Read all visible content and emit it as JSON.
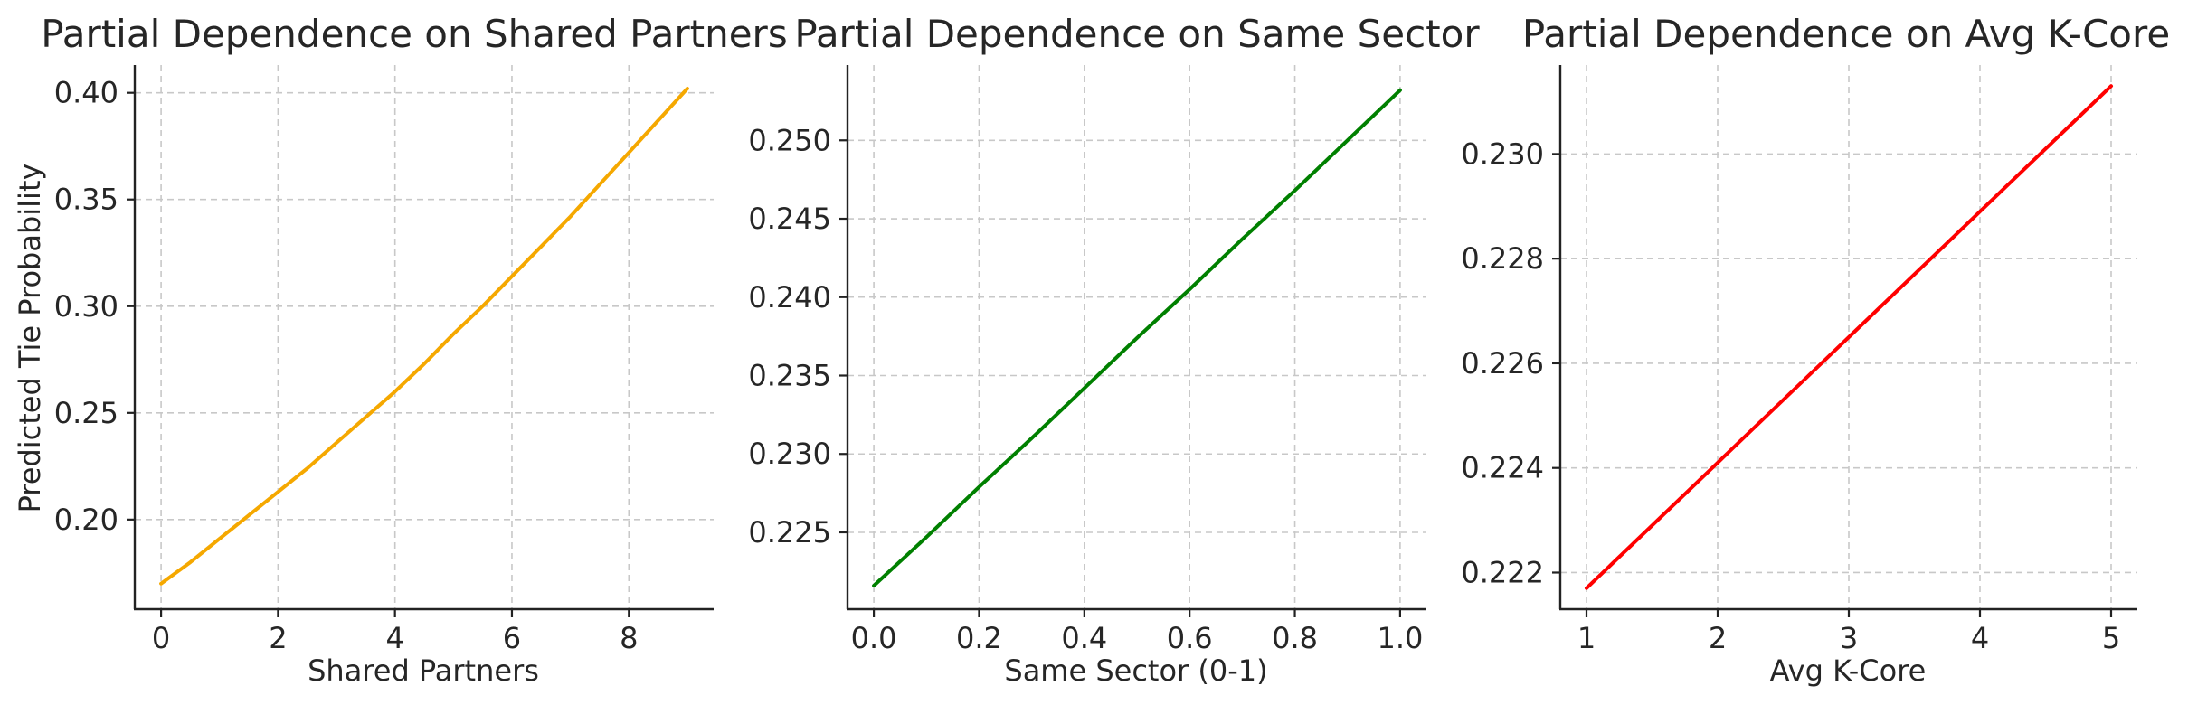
{
  "chart_data": [
    {
      "type": "line",
      "title": "Partial Dependence on Shared Partners",
      "xlabel": "Shared Partners",
      "ylabel": "Predicted Tie Probability",
      "xlim": [
        -0.45,
        9.45
      ],
      "ylim": [
        0.158,
        0.413
      ],
      "xticks": [
        0,
        2,
        4,
        6,
        8
      ],
      "xtick_labels": [
        "0",
        "2",
        "4",
        "6",
        "8"
      ],
      "yticks": [
        0.2,
        0.25,
        0.3,
        0.35,
        0.4
      ],
      "ytick_labels": [
        "0.20",
        "0.25",
        "0.30",
        "0.35",
        "0.40"
      ],
      "grid": true,
      "color": "#f5a800",
      "series": [
        {
          "x": [
            0,
            0.5,
            1,
            1.5,
            2,
            2.5,
            3,
            3.5,
            4,
            4.5,
            5,
            5.5,
            6,
            6.5,
            7,
            7.5,
            8,
            8.5,
            9
          ],
          "values": [
            0.17,
            0.18,
            0.191,
            0.202,
            0.213,
            0.224,
            0.236,
            0.248,
            0.26,
            0.273,
            0.287,
            0.3,
            0.314,
            0.328,
            0.342,
            0.357,
            0.372,
            0.387,
            0.402
          ]
        }
      ]
    },
    {
      "type": "line",
      "title": "Partial Dependence on Same Sector",
      "xlabel": "Same Sector (0-1)",
      "ylabel": "",
      "xlim": [
        -0.05,
        1.05
      ],
      "ylim": [
        0.2201,
        0.2548
      ],
      "xticks": [
        0.0,
        0.2,
        0.4,
        0.6,
        0.8,
        1.0
      ],
      "xtick_labels": [
        "0.0",
        "0.2",
        "0.4",
        "0.6",
        "0.8",
        "1.0"
      ],
      "yticks": [
        0.225,
        0.23,
        0.235,
        0.24,
        0.245,
        0.25
      ],
      "ytick_labels": [
        "0.225",
        "0.230",
        "0.235",
        "0.240",
        "0.245",
        "0.250"
      ],
      "grid": true,
      "color": "#008000",
      "series": [
        {
          "x": [
            0.0,
            0.1,
            0.2,
            0.3,
            0.4,
            0.5,
            0.6,
            0.7,
            0.8,
            0.9,
            1.0
          ],
          "values": [
            0.2216,
            0.2247,
            0.2279,
            0.231,
            0.2342,
            0.2374,
            0.2405,
            0.2437,
            0.2468,
            0.25,
            0.2532
          ]
        }
      ]
    },
    {
      "type": "line",
      "title": "Partial Dependence on Avg K-Core",
      "xlabel": "Avg K-Core",
      "ylabel": "",
      "xlim": [
        0.8,
        5.2
      ],
      "ylim": [
        0.2213,
        0.2317
      ],
      "xticks": [
        1,
        2,
        3,
        4,
        5
      ],
      "xtick_labels": [
        "1",
        "2",
        "3",
        "4",
        "5"
      ],
      "yticks": [
        0.222,
        0.224,
        0.226,
        0.228,
        0.23
      ],
      "ytick_labels": [
        "0.222",
        "0.224",
        "0.226",
        "0.228",
        "0.230"
      ],
      "grid": true,
      "color": "#ff0000",
      "series": [
        {
          "x": [
            1,
            2,
            3,
            4,
            5
          ],
          "values": [
            0.2217,
            0.2241,
            0.2265,
            0.2289,
            0.2313
          ]
        }
      ]
    }
  ]
}
